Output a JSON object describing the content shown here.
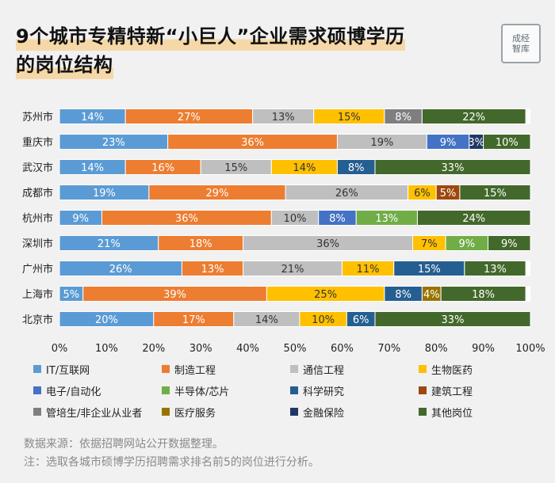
{
  "title": {
    "line1": "9个城市专精特新“小巨人”企业需求硕博学历",
    "line2": "的岗位结构"
  },
  "logo": {
    "text": "成经智库"
  },
  "chart_data": {
    "type": "bar",
    "orientation": "horizontal",
    "stacked": true,
    "normalized": true,
    "categories": [
      "苏州市",
      "重庆市",
      "武汉市",
      "成都市",
      "杭州市",
      "深圳市",
      "广州市",
      "上海市",
      "北京市"
    ],
    "x_ticks": [
      "0%",
      "10%",
      "20%",
      "30%",
      "40%",
      "50%",
      "60%",
      "70%",
      "80%",
      "90%",
      "100%"
    ],
    "xlim": [
      0,
      100
    ],
    "legend_position": "bottom",
    "series": [
      {
        "name": "IT/互联网",
        "color": "#5b9bd5",
        "values": [
          14,
          23,
          14,
          19,
          9,
          21,
          26,
          5,
          20
        ]
      },
      {
        "name": "制造工程",
        "color": "#ed7d31",
        "values": [
          27,
          36,
          16,
          29,
          36,
          18,
          13,
          39,
          17
        ]
      },
      {
        "name": "通信工程",
        "color": "#bfbfbf",
        "values": [
          13,
          19,
          15,
          26,
          10,
          36,
          21,
          0,
          14
        ]
      },
      {
        "name": "生物医药",
        "color": "#ffc000",
        "values": [
          15,
          0,
          14,
          6,
          0,
          7,
          11,
          25,
          10
        ]
      },
      {
        "name": "电子/自动化",
        "color": "#4472c4",
        "values": [
          0,
          9,
          0,
          0,
          8,
          0,
          0,
          0,
          0
        ]
      },
      {
        "name": "半导体/芯片",
        "color": "#70ad47",
        "values": [
          0,
          0,
          0,
          0,
          13,
          9,
          0,
          0,
          0
        ]
      },
      {
        "name": "科学研究",
        "color": "#255e91",
        "values": [
          0,
          0,
          8,
          0,
          0,
          0,
          15,
          8,
          6
        ]
      },
      {
        "name": "建筑工程",
        "color": "#9e480e",
        "values": [
          0,
          0,
          0,
          5,
          0,
          0,
          0,
          0,
          0
        ]
      },
      {
        "name": "管培生/非企业从业者",
        "color": "#7f7f7f",
        "values": [
          8,
          0,
          0,
          0,
          0,
          0,
          0,
          0,
          0
        ]
      },
      {
        "name": "医疗服务",
        "color": "#997300",
        "values": [
          0,
          0,
          0,
          0,
          0,
          0,
          0,
          4,
          0
        ]
      },
      {
        "name": "金融保险",
        "color": "#203864",
        "values": [
          0,
          3,
          0,
          0,
          0,
          0,
          0,
          0,
          0
        ]
      },
      {
        "name": "其他岗位",
        "color": "#43682b",
        "values": [
          22,
          10,
          33,
          15,
          24,
          9,
          13,
          18,
          33
        ]
      }
    ]
  },
  "footer": {
    "source": "数据来源：依据招聘网站公开数据整理。",
    "note": "注：选取各城市硕博学历招聘需求排名前5的岗位进行分析。"
  }
}
